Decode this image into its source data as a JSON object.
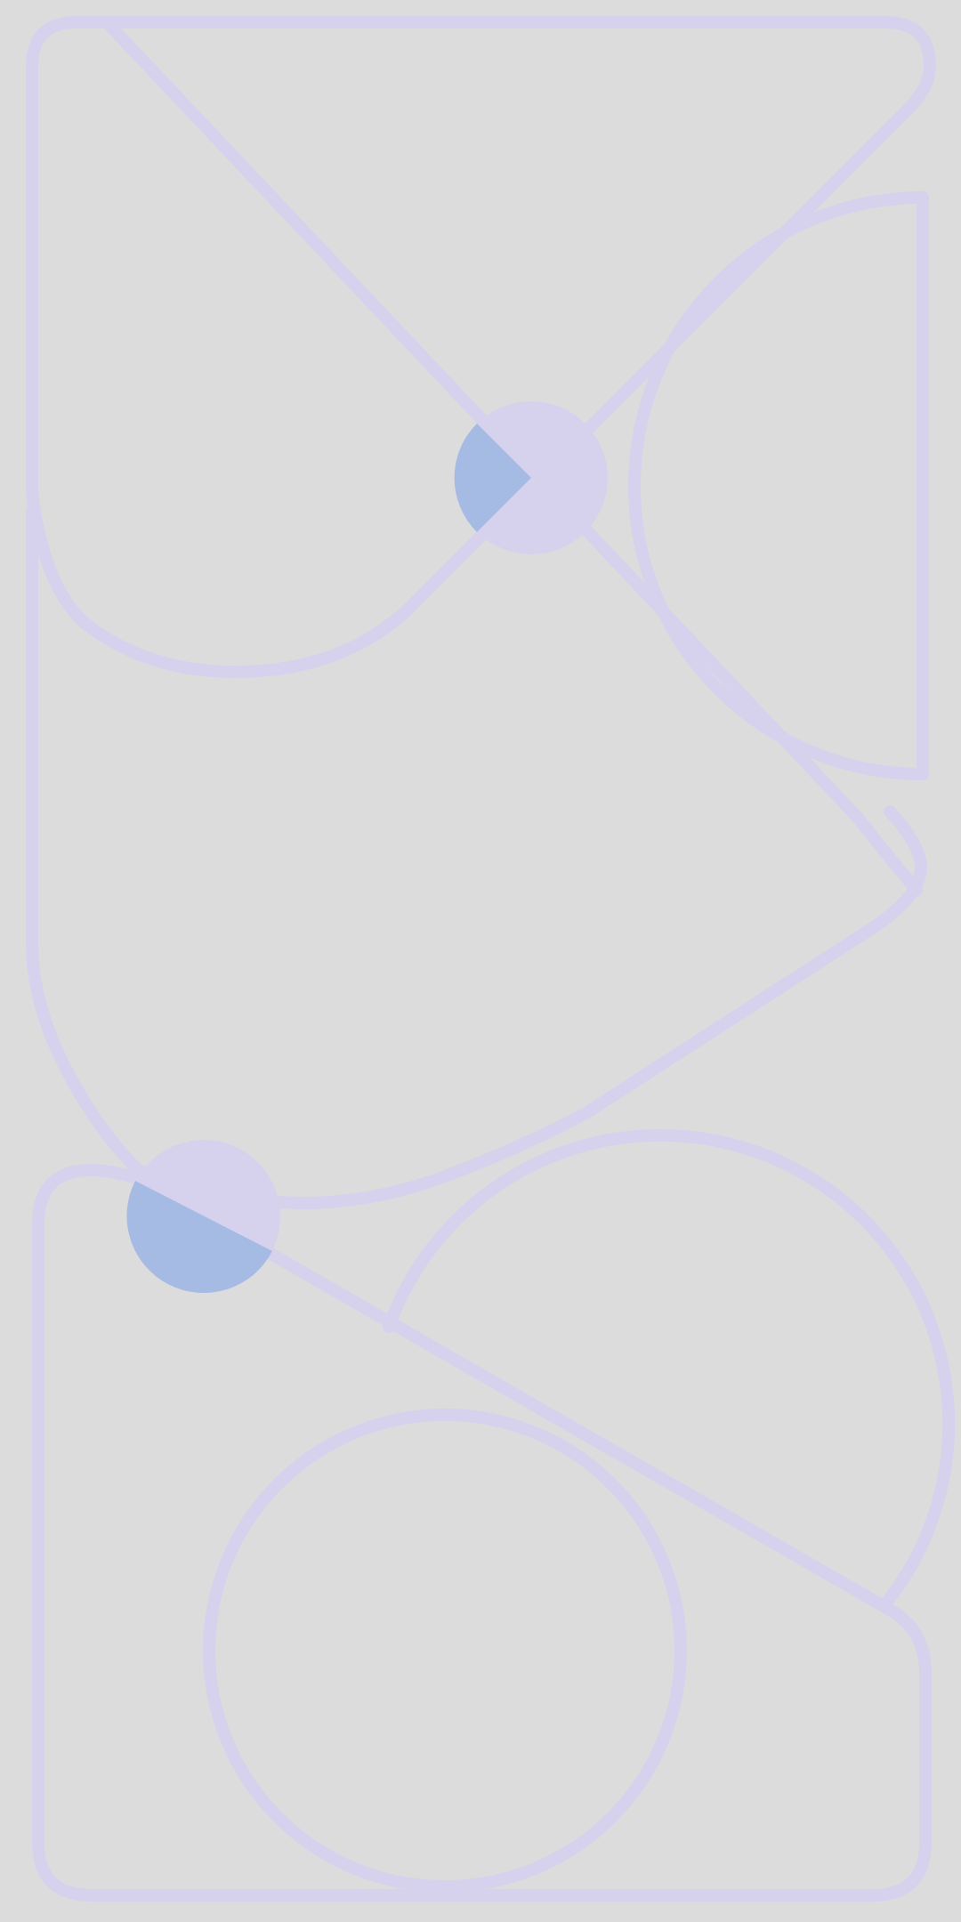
{
  "colors": {
    "background": "#dcdcdc",
    "outline": "#d6d2ee",
    "dot_light": "#d6d2ee",
    "dot_accent": "#a6bbe4"
  },
  "shapes": [
    "upper-folded-path",
    "upper-half-disc",
    "lower-folded-path",
    "lower-rounded-panel",
    "lower-arc",
    "lower-circle"
  ],
  "dots": [
    "upper-dot",
    "lower-dot"
  ]
}
